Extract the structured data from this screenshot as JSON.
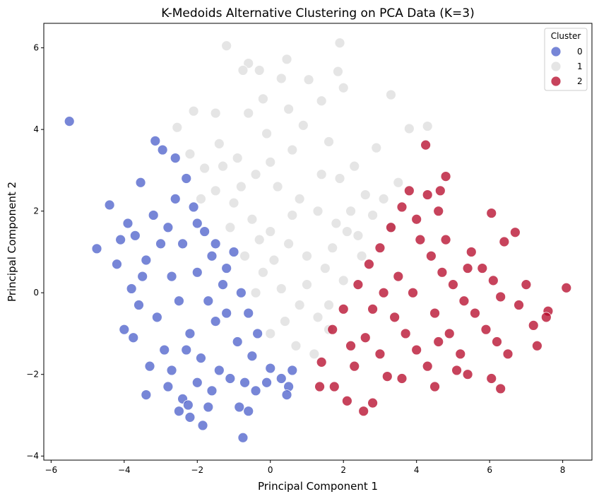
{
  "chart_data": {
    "type": "scatter",
    "title": "K-Medoids Alternative Clustering on PCA Data (K=3)",
    "xlabel": "Principal Component 1",
    "ylabel": "Principal Component 2",
    "xlim": [
      -6.2,
      8.8
    ],
    "ylim": [
      -4.1,
      6.6
    ],
    "xticks": [
      -6,
      -4,
      -2,
      0,
      2,
      4,
      6,
      8
    ],
    "yticks": [
      -4,
      -2,
      0,
      2,
      4,
      6
    ],
    "xtick_labels": [
      "−6",
      "−4",
      "−2",
      "0",
      "2",
      "4",
      "6",
      "8"
    ],
    "ytick_labels": [
      "−4",
      "−2",
      "0",
      "2",
      "4",
      "6"
    ],
    "grid": false,
    "legend": {
      "title": "Cluster",
      "position": "top-right",
      "entries": [
        {
          "label": "0",
          "color": "#4a5ec9"
        },
        {
          "label": "1",
          "color": "#dcdcdc"
        },
        {
          "label": "2",
          "color": "#b40426"
        }
      ]
    },
    "series": [
      {
        "name": "0",
        "color": "#4a5ec9",
        "points": [
          [
            -5.5,
            4.2
          ],
          [
            -4.75,
            1.08
          ],
          [
            -4.4,
            2.15
          ],
          [
            -3.15,
            3.72
          ],
          [
            -2.95,
            3.5
          ],
          [
            -2.6,
            3.3
          ],
          [
            -2.3,
            2.8
          ],
          [
            -3.55,
            2.7
          ],
          [
            -3.9,
            1.7
          ],
          [
            -4.1,
            1.3
          ],
          [
            -4.2,
            0.7
          ],
          [
            -3.8,
            0.1
          ],
          [
            -4.0,
            -0.9
          ],
          [
            -3.75,
            -1.1
          ],
          [
            -3.4,
            -2.5
          ],
          [
            -2.8,
            -2.3
          ],
          [
            -2.4,
            -2.6
          ],
          [
            -2.2,
            -3.05
          ],
          [
            -1.85,
            -3.25
          ],
          [
            -2.25,
            -2.75
          ],
          [
            -1.6,
            -2.4
          ],
          [
            -0.75,
            -3.55
          ],
          [
            -0.85,
            -2.8
          ],
          [
            -0.6,
            -2.9
          ],
          [
            -0.4,
            -2.4
          ],
          [
            -0.1,
            -2.2
          ],
          [
            -0.5,
            -1.55
          ],
          [
            -0.35,
            -1.0
          ],
          [
            0.0,
            -1.85
          ],
          [
            0.3,
            -2.1
          ],
          [
            0.5,
            -2.3
          ],
          [
            0.6,
            -1.9
          ],
          [
            0.45,
            -2.5
          ],
          [
            -1.0,
            1.0
          ],
          [
            -1.3,
            0.2
          ],
          [
            -1.5,
            -0.7
          ],
          [
            -3.2,
            1.9
          ],
          [
            -3.0,
            1.2
          ],
          [
            -2.7,
            0.4
          ],
          [
            -2.5,
            -0.2
          ],
          [
            -2.2,
            -1.0
          ],
          [
            -1.9,
            -1.6
          ],
          [
            -3.4,
            0.8
          ],
          [
            -3.1,
            -0.6
          ],
          [
            -2.9,
            -1.4
          ],
          [
            -2.6,
            2.3
          ],
          [
            -2.1,
            2.1
          ],
          [
            -1.8,
            1.5
          ],
          [
            -1.6,
            0.9
          ],
          [
            -2.4,
            1.2
          ],
          [
            -2.0,
            0.5
          ],
          [
            -1.7,
            -0.2
          ],
          [
            -1.2,
            -0.5
          ],
          [
            -0.9,
            -1.2
          ],
          [
            -3.6,
            -0.3
          ],
          [
            -3.3,
            -1.8
          ],
          [
            -2.7,
            -1.9
          ],
          [
            -2.3,
            -1.4
          ],
          [
            -1.4,
            -1.9
          ],
          [
            -1.1,
            -2.1
          ],
          [
            -3.7,
            1.4
          ],
          [
            -3.5,
            0.4
          ],
          [
            -2.8,
            1.6
          ],
          [
            -2.0,
            1.7
          ],
          [
            -1.5,
            1.2
          ],
          [
            -1.2,
            0.6
          ],
          [
            -0.8,
            0.0
          ],
          [
            -0.6,
            -0.5
          ],
          [
            -0.7,
            -2.2
          ],
          [
            -2.5,
            -2.9
          ],
          [
            -2.0,
            -2.2
          ],
          [
            -1.7,
            -2.8
          ]
        ]
      },
      {
        "name": "1",
        "color": "#dcdcdc",
        "points": [
          [
            -1.2,
            6.05
          ],
          [
            1.9,
            6.12
          ],
          [
            -0.6,
            5.62
          ],
          [
            0.45,
            5.72
          ],
          [
            -0.75,
            5.45
          ],
          [
            -0.3,
            5.45
          ],
          [
            1.05,
            5.22
          ],
          [
            1.85,
            5.42
          ],
          [
            2.0,
            5.02
          ],
          [
            0.3,
            5.25
          ],
          [
            -0.2,
            4.75
          ],
          [
            3.3,
            4.85
          ],
          [
            -1.5,
            4.4
          ],
          [
            -2.1,
            4.45
          ],
          [
            -0.6,
            4.4
          ],
          [
            -2.55,
            4.05
          ],
          [
            1.4,
            4.7
          ],
          [
            3.8,
            4.02
          ],
          [
            4.3,
            4.08
          ],
          [
            -1.4,
            3.65
          ],
          [
            -0.9,
            3.3
          ],
          [
            0.0,
            3.2
          ],
          [
            0.6,
            3.5
          ],
          [
            1.6,
            3.7
          ],
          [
            2.3,
            3.1
          ],
          [
            2.9,
            3.55
          ],
          [
            3.5,
            2.7
          ],
          [
            -1.8,
            3.05
          ],
          [
            -1.5,
            2.5
          ],
          [
            -1.0,
            2.2
          ],
          [
            -0.5,
            1.8
          ],
          [
            0.0,
            1.5
          ],
          [
            0.5,
            1.2
          ],
          [
            1.0,
            0.9
          ],
          [
            1.5,
            0.6
          ],
          [
            2.0,
            0.3
          ],
          [
            -0.4,
            2.9
          ],
          [
            0.2,
            2.6
          ],
          [
            0.8,
            2.3
          ],
          [
            1.3,
            2.0
          ],
          [
            1.8,
            1.7
          ],
          [
            2.4,
            1.4
          ],
          [
            2.8,
            1.9
          ],
          [
            3.1,
            2.3
          ],
          [
            -0.7,
            0.9
          ],
          [
            -0.2,
            0.5
          ],
          [
            0.3,
            0.1
          ],
          [
            0.8,
            -0.3
          ],
          [
            1.3,
            -0.6
          ],
          [
            1.6,
            -0.9
          ],
          [
            0.4,
            -0.7
          ],
          [
            0.0,
            -1.0
          ],
          [
            -0.4,
            0.0
          ],
          [
            -1.1,
            1.6
          ],
          [
            -1.9,
            2.3
          ],
          [
            -2.2,
            3.4
          ],
          [
            -0.1,
            3.9
          ],
          [
            0.9,
            4.1
          ],
          [
            1.9,
            2.8
          ],
          [
            2.6,
            2.4
          ],
          [
            3.3,
            1.6
          ],
          [
            2.2,
            2.0
          ],
          [
            1.4,
            2.9
          ],
          [
            0.6,
            1.9
          ],
          [
            -0.3,
            1.3
          ],
          [
            1.0,
            0.2
          ],
          [
            1.7,
            1.1
          ],
          [
            2.5,
            0.9
          ],
          [
            0.1,
            0.8
          ],
          [
            -0.8,
            2.6
          ],
          [
            0.7,
            -1.3
          ],
          [
            1.2,
            -1.5
          ],
          [
            1.6,
            -0.3
          ],
          [
            2.1,
            1.5
          ],
          [
            -1.3,
            3.1
          ],
          [
            0.5,
            4.5
          ]
        ]
      },
      {
        "name": "2",
        "color": "#b40426",
        "points": [
          [
            4.25,
            3.62
          ],
          [
            4.8,
            2.85
          ],
          [
            4.65,
            2.5
          ],
          [
            4.3,
            2.4
          ],
          [
            4.6,
            2.0
          ],
          [
            6.05,
            1.95
          ],
          [
            6.7,
            1.48
          ],
          [
            6.4,
            1.25
          ],
          [
            8.1,
            0.12
          ],
          [
            7.6,
            -0.45
          ],
          [
            7.55,
            -0.6
          ],
          [
            7.3,
            -1.3
          ],
          [
            6.3,
            -2.35
          ],
          [
            6.05,
            -2.1
          ],
          [
            5.4,
            -2.0
          ],
          [
            4.5,
            -2.3
          ],
          [
            3.2,
            -2.05
          ],
          [
            2.8,
            -2.7
          ],
          [
            2.55,
            -2.9
          ],
          [
            2.1,
            -2.65
          ],
          [
            1.75,
            -2.3
          ],
          [
            1.35,
            -2.3
          ],
          [
            1.4,
            -1.7
          ],
          [
            1.7,
            -0.9
          ],
          [
            2.0,
            -0.4
          ],
          [
            2.4,
            0.2
          ],
          [
            2.7,
            0.7
          ],
          [
            3.0,
            1.1
          ],
          [
            3.3,
            1.6
          ],
          [
            3.6,
            2.1
          ],
          [
            3.8,
            2.5
          ],
          [
            4.0,
            1.8
          ],
          [
            4.1,
            1.3
          ],
          [
            4.4,
            0.9
          ],
          [
            4.7,
            0.5
          ],
          [
            5.0,
            0.2
          ],
          [
            5.3,
            -0.2
          ],
          [
            5.6,
            -0.5
          ],
          [
            5.9,
            -0.9
          ],
          [
            6.2,
            -1.2
          ],
          [
            6.5,
            -1.5
          ],
          [
            6.8,
            -0.3
          ],
          [
            7.0,
            0.2
          ],
          [
            7.2,
            -0.8
          ],
          [
            5.5,
            1.0
          ],
          [
            5.8,
            0.6
          ],
          [
            6.1,
            0.3
          ],
          [
            3.4,
            -0.6
          ],
          [
            3.7,
            -1.0
          ],
          [
            4.0,
            -1.4
          ],
          [
            4.3,
            -1.8
          ],
          [
            3.0,
            -1.5
          ],
          [
            2.6,
            -1.1
          ],
          [
            2.3,
            -1.8
          ],
          [
            3.9,
            0.0
          ],
          [
            4.5,
            -0.5
          ],
          [
            4.9,
            -1.0
          ],
          [
            5.2,
            -1.5
          ],
          [
            3.5,
            0.4
          ],
          [
            3.1,
            0.0
          ],
          [
            2.8,
            -0.4
          ],
          [
            5.4,
            0.6
          ],
          [
            6.3,
            -0.1
          ],
          [
            5.1,
            -1.9
          ],
          [
            3.6,
            -2.1
          ],
          [
            4.8,
            1.3
          ],
          [
            2.2,
            -1.3
          ],
          [
            4.6,
            -1.2
          ]
        ]
      }
    ]
  }
}
